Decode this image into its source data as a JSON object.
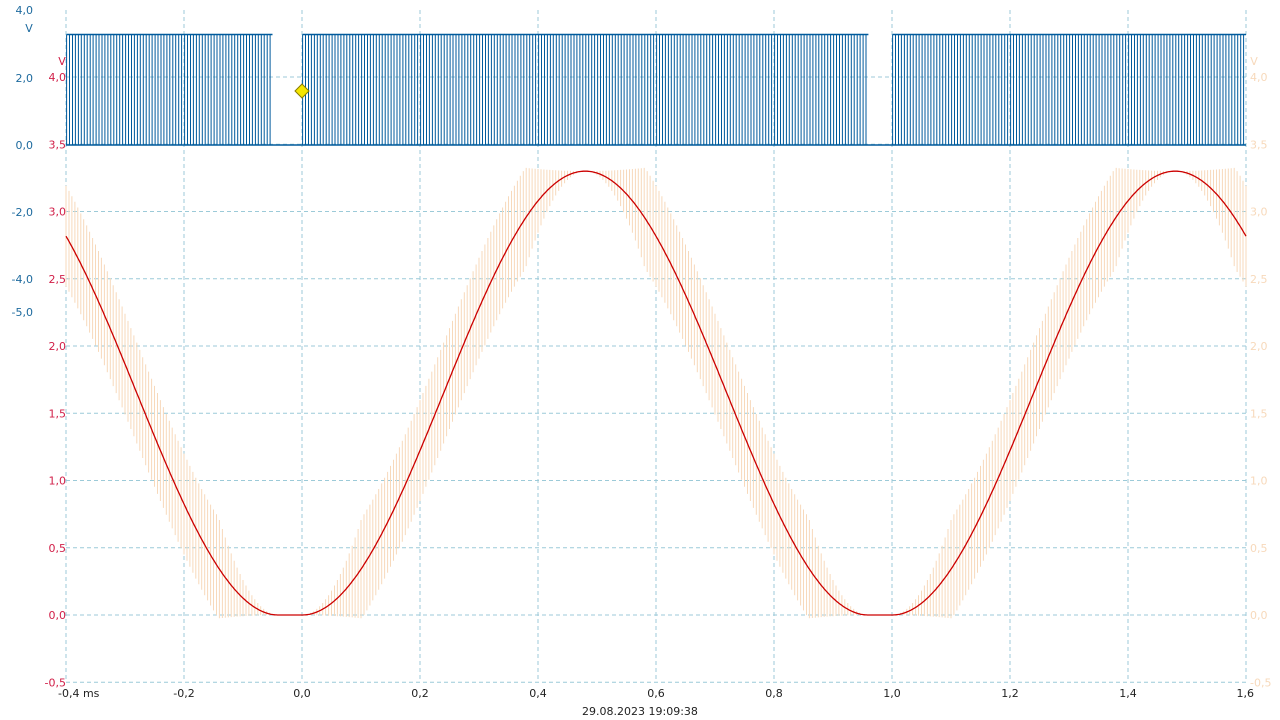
{
  "timestamp": "29.08.2023 19:09:38",
  "colors": {
    "ch_digital": "#005a9c",
    "ch_smooth": "#cc0000",
    "ch_pwm": "#f7d9bb",
    "grid": "#9ccad8",
    "trigger_marker": "#f5e600"
  },
  "chart_data": {
    "type": "line",
    "x_axis": {
      "unit": "ms",
      "range": [
        -0.4,
        1.6
      ],
      "tick_labels": [
        "-0,4 ms",
        "-0,2",
        "0,0",
        "0,2",
        "0,4",
        "0,6",
        "0,8",
        "1,0",
        "1,2",
        "1,4",
        "1,6"
      ]
    },
    "y_axes": [
      {
        "id": "digital",
        "unit_label": "V",
        "color": "#1d6a9e",
        "range": [
          -5.0,
          4.0
        ],
        "tick_labels": [
          "4,0",
          "2,0",
          "0,0",
          "-2,0",
          "-4,0",
          "-5,0"
        ],
        "tick_values": [
          4.0,
          2.0,
          0.0,
          -2.0,
          -4.0,
          -5.0
        ]
      },
      {
        "id": "analog",
        "unit_label": "V",
        "color": "#d11f48",
        "range": [
          -0.5,
          4.0
        ],
        "tick_labels": [
          "4,0",
          "3,5",
          "3,0",
          "2,5",
          "2,0",
          "1,5",
          "1,0",
          "0,5",
          "0,0",
          "-0,5"
        ],
        "tick_values": [
          4.0,
          3.5,
          3.0,
          2.5,
          2.0,
          1.5,
          1.0,
          0.5,
          0.0,
          -0.5
        ]
      },
      {
        "id": "analog-right",
        "unit_label": "V",
        "color": "#f7d9bb",
        "range": [
          -0.5,
          4.0
        ],
        "tick_labels": [
          "4,0",
          "3,5",
          "3,0",
          "2,5",
          "2,0",
          "1,5",
          "1,0",
          "0,5",
          "0,0",
          "-0,5"
        ],
        "tick_values": [
          4.0,
          3.5,
          3.0,
          2.5,
          2.0,
          1.5,
          1.0,
          0.5,
          0.0,
          -0.5
        ]
      }
    ],
    "grid": true,
    "trigger": {
      "x_ms": 0.0,
      "y_v": 1.7
    },
    "series": [
      {
        "id": "digital-pwm",
        "axis": "digital",
        "kind": "pwm-pulse-train",
        "low_v": 0.0,
        "high_v": 3.3,
        "pulse_period_ms": 0.005,
        "gaps_ms": [
          [
            -0.05,
            0.0
          ],
          [
            0.96,
            1.0
          ]
        ]
      },
      {
        "id": "smoothed-output",
        "axis": "analog",
        "kind": "raised-cosine",
        "period_ms": 1.0,
        "min_v": 0.0,
        "max_v": 3.3,
        "min_at_ms": -0.02,
        "flat_half_width_ms": 0.02
      },
      {
        "id": "filtered-ripple",
        "axis": "analog",
        "kind": "ripple-band",
        "follows": "smoothed-output",
        "ripple_pp_v": 0.75,
        "ripple_period_ms": 0.005
      }
    ]
  }
}
